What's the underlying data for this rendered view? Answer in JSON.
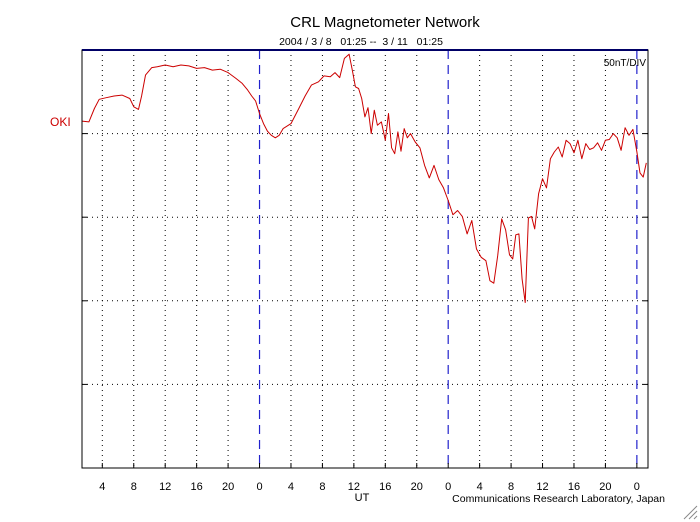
{
  "chart_data": {
    "type": "line",
    "title": "CRL Magnetometer Network",
    "subtitle": "2004 / 3 / 8   01:25 --  3 / 11   01:25",
    "scale_label": "50nT/DIV",
    "station_label": "OKI",
    "xlabel": "UT",
    "credit": "Communications Research Laboratory, Japan",
    "x_unit": "hours since 2004-03-08 00:00 UT",
    "xlim": [
      1.4167,
      73.4167
    ],
    "ylim": [
      0,
      5
    ],
    "y_divisions": [
      1,
      2,
      3,
      4
    ],
    "baseline_level": 5,
    "day_boundaries": [
      24,
      48,
      72
    ],
    "x_ticks": [
      {
        "x": 4,
        "label": "4"
      },
      {
        "x": 8,
        "label": "8"
      },
      {
        "x": 12,
        "label": "12"
      },
      {
        "x": 16,
        "label": "16"
      },
      {
        "x": 20,
        "label": "20"
      },
      {
        "x": 24,
        "label": "0"
      },
      {
        "x": 28,
        "label": "4"
      },
      {
        "x": 32,
        "label": "8"
      },
      {
        "x": 36,
        "label": "12"
      },
      {
        "x": 40,
        "label": "16"
      },
      {
        "x": 44,
        "label": "20"
      },
      {
        "x": 48,
        "label": "0"
      },
      {
        "x": 52,
        "label": "4"
      },
      {
        "x": 56,
        "label": "8"
      },
      {
        "x": 60,
        "label": "12"
      },
      {
        "x": 64,
        "label": "16"
      },
      {
        "x": 68,
        "label": "20"
      },
      {
        "x": 72,
        "label": "0"
      }
    ],
    "series": [
      {
        "name": "OKI",
        "color": "#cc0000",
        "x": [
          1.42,
          2.3,
          3.0,
          3.6,
          4.5,
          5.5,
          6.5,
          7.5,
          8.0,
          8.6,
          9.0,
          9.5,
          10.3,
          11.0,
          12.0,
          13.0,
          14.0,
          15.0,
          16.0,
          17.0,
          18.0,
          19.0,
          20.0,
          21.0,
          21.8,
          22.5,
          23.0,
          23.5,
          24.0,
          24.5,
          25.0,
          25.5,
          26.0,
          26.5,
          27.0,
          28.0,
          29.0,
          29.8,
          30.6,
          31.5,
          32.2,
          33.0,
          33.6,
          34.2,
          34.8,
          35.4,
          35.8,
          36.2,
          36.6,
          37.0,
          37.4,
          37.8,
          38.2,
          38.6,
          39.0,
          39.5,
          40.0,
          40.4,
          40.8,
          41.2,
          41.6,
          42.0,
          42.4,
          42.8,
          43.2,
          43.8,
          44.4,
          45.0,
          45.6,
          46.2,
          46.8,
          47.4,
          48.0,
          48.6,
          49.2,
          49.8,
          50.4,
          51.0,
          51.6,
          52.2,
          52.8,
          53.3,
          53.8,
          54.3,
          54.8,
          55.3,
          55.8,
          56.2,
          56.6,
          57.0,
          57.4,
          57.8,
          58.2,
          58.6,
          59.0,
          59.5,
          60.0,
          60.5,
          61.0,
          61.5,
          62.0,
          62.5,
          63.0,
          63.5,
          64.0,
          64.5,
          65.0,
          65.5,
          66.0,
          66.5,
          67.0,
          67.5,
          68.0,
          68.5,
          69.0,
          69.5,
          70.0,
          70.5,
          71.0,
          71.5,
          72.0,
          72.4,
          72.8,
          73.2
        ],
        "values": [
          4.15,
          4.14,
          4.3,
          4.41,
          4.43,
          4.45,
          4.46,
          4.42,
          4.32,
          4.29,
          4.45,
          4.7,
          4.79,
          4.8,
          4.82,
          4.8,
          4.82,
          4.81,
          4.78,
          4.79,
          4.76,
          4.77,
          4.73,
          4.66,
          4.6,
          4.52,
          4.45,
          4.39,
          4.24,
          4.12,
          4.03,
          3.98,
          3.95,
          3.98,
          4.06,
          4.12,
          4.3,
          4.45,
          4.58,
          4.62,
          4.69,
          4.68,
          4.73,
          4.67,
          4.9,
          4.95,
          4.76,
          4.56,
          4.54,
          4.42,
          4.2,
          4.31,
          4.0,
          4.28,
          4.1,
          4.14,
          3.92,
          4.24,
          3.83,
          3.76,
          4.02,
          3.79,
          4.06,
          3.95,
          4.0,
          3.9,
          3.83,
          3.62,
          3.47,
          3.62,
          3.45,
          3.35,
          3.2,
          3.03,
          3.08,
          3.01,
          2.8,
          2.96,
          2.62,
          2.52,
          2.48,
          2.24,
          2.21,
          2.54,
          2.98,
          2.85,
          2.55,
          2.5,
          2.79,
          2.8,
          2.26,
          1.98,
          2.99,
          3.01,
          2.86,
          3.28,
          3.46,
          3.35,
          3.7,
          3.78,
          3.84,
          3.72,
          3.92,
          3.88,
          3.77,
          3.92,
          3.7,
          3.88,
          3.81,
          3.83,
          3.89,
          3.8,
          3.92,
          3.93,
          4.0,
          3.95,
          3.8,
          4.07,
          3.98,
          4.05,
          3.78,
          3.53,
          3.48,
          3.65
        ]
      }
    ]
  }
}
